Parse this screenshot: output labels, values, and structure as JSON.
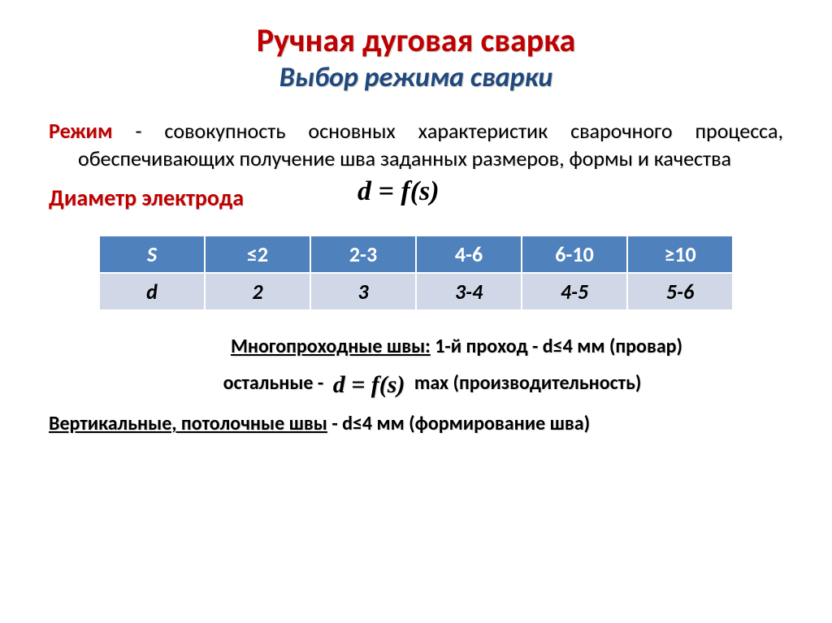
{
  "title": "Ручная дуговая сварка",
  "subtitle": "Выбор режима сварки",
  "paragraph": {
    "lead": "Режим",
    "rest": " - совокупность основных характеристик сварочного процесса, обеспечивающих получение шва заданных размеров, формы и качества"
  },
  "section_head": "Диаметр электрода",
  "formula_main": "d = f(s)",
  "table": {
    "header_label": "S",
    "header_cells": [
      "≤2",
      "2-3",
      "4-6",
      "6-10",
      "≥10"
    ],
    "value_label": "d",
    "value_cells": [
      "2",
      "3",
      "3-4",
      "4-5",
      "5-6"
    ],
    "header_bg": "#4f81bd",
    "header_fg": "#ffffff",
    "value_bg": "#d0d8e8",
    "value_fg": "#000000",
    "border_color": "#ffffff"
  },
  "notes": {
    "line1_u": "Многопроходные швы:",
    "line1_rest": " 1-й проход - d≤4 мм (провар)",
    "line2_pre": "остальные - ",
    "line2_formula": "d = f(s)",
    "line2_post": " max (производительность)",
    "line3_u": "Вертикальные, потолочные швы",
    "line3_rest": " - d≤4 мм (формирование шва)"
  },
  "colors": {
    "title": "#c00000",
    "subtitle": "#1f497d",
    "text": "#000000",
    "background": "#ffffff"
  },
  "typography": {
    "title_size_pt": 30,
    "subtitle_size_pt": 26,
    "body_size_pt": 20,
    "table_size_pt": 20,
    "font_family": "Calibri"
  }
}
